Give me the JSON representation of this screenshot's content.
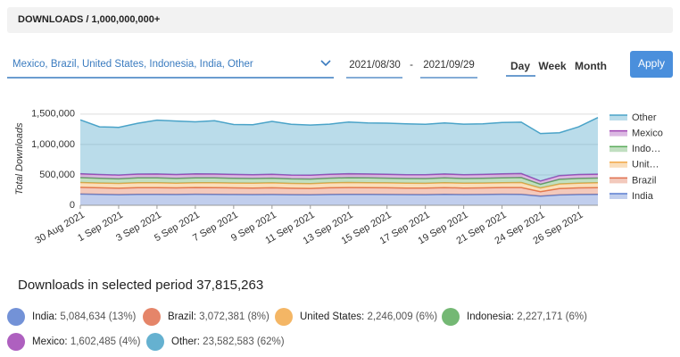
{
  "header": {
    "title": "DOWNLOADS / 1,000,000,000+"
  },
  "filters": {
    "countries": "Mexico,  Brazil,  United States,  Indonesia,  India,  Other",
    "start_date": "2021/08/30",
    "separator": "-",
    "end_date": "2021/09/29",
    "granularity": [
      "Day",
      "Week",
      "Month"
    ],
    "apply": "Apply"
  },
  "chart_data": {
    "type": "stacked_area",
    "ylabel": "Total Downloads",
    "categories": [
      "30 Aug 2021",
      null,
      "1 Sep 2021",
      null,
      "3 Sep 2021",
      null,
      "5 Sep 2021",
      null,
      "7 Sep 2021",
      null,
      "9 Sep 2021",
      null,
      "11 Sep 2021",
      null,
      "13 Sep 2021",
      null,
      "15 Sep 2021",
      null,
      "17 Sep 2021",
      null,
      "19 Sep 2021",
      null,
      "21 Sep 2021",
      null,
      "24 Sep 2021",
      null,
      "26 Sep 2021",
      null
    ],
    "ylim": [
      0,
      1600000
    ],
    "yticks": [
      {
        "value": 0,
        "label": "0"
      },
      {
        "value": 500000,
        "label": "500,000"
      },
      {
        "value": 1000000,
        "label": "1,000,000"
      },
      {
        "value": 1500000,
        "label": "1,500,000"
      }
    ],
    "grid": true,
    "legend": "right",
    "series": [
      {
        "name": "India",
        "color": "#5b7fd0",
        "values": [
          185000,
          180000,
          175000,
          180000,
          180000,
          178000,
          182000,
          180000,
          178000,
          176000,
          178000,
          175000,
          172000,
          178000,
          180000,
          180000,
          178000,
          176000,
          175000,
          180000,
          176000,
          178000,
          182000,
          180000,
          150000,
          170000,
          178000,
          180000
        ]
      },
      {
        "name": "Brazil",
        "color": "#e0704f",
        "values": [
          110000,
          108000,
          106000,
          110000,
          110000,
          108000,
          110000,
          110000,
          108000,
          108000,
          110000,
          106000,
          106000,
          110000,
          112000,
          110000,
          110000,
          108000,
          108000,
          110000,
          108000,
          108000,
          110000,
          112000,
          75000,
          105000,
          108000,
          110000
        ]
      },
      {
        "name": "Unit…",
        "color": "#f2a94a",
        "values": [
          80000,
          78000,
          78000,
          80000,
          80000,
          78000,
          80000,
          80000,
          80000,
          78000,
          80000,
          78000,
          78000,
          80000,
          82000,
          80000,
          80000,
          78000,
          78000,
          80000,
          78000,
          80000,
          80000,
          82000,
          60000,
          76000,
          78000,
          80000
        ]
      },
      {
        "name": "Indo…",
        "color": "#5cac5c",
        "values": [
          80000,
          78000,
          76000,
          80000,
          80000,
          78000,
          80000,
          80000,
          78000,
          78000,
          78000,
          76000,
          76000,
          78000,
          80000,
          80000,
          78000,
          78000,
          78000,
          80000,
          78000,
          78000,
          80000,
          82000,
          60000,
          76000,
          78000,
          78000
        ]
      },
      {
        "name": "Mexico",
        "color": "#a044b4",
        "values": [
          65000,
          62000,
          62000,
          64000,
          65000,
          64000,
          65000,
          65000,
          64000,
          64000,
          64000,
          62000,
          62000,
          64000,
          66000,
          65000,
          64000,
          64000,
          64000,
          65000,
          64000,
          64000,
          65000,
          66000,
          55000,
          62000,
          64000,
          65000
        ]
      },
      {
        "name": "Other",
        "color": "#4aa3c8",
        "values": [
          885000,
          785000,
          785000,
          835000,
          885000,
          880000,
          855000,
          875000,
          820000,
          820000,
          870000,
          835000,
          825000,
          825000,
          850000,
          840000,
          840000,
          835000,
          830000,
          840000,
          830000,
          830000,
          845000,
          845000,
          780000,
          705000,
          785000,
          930000
        ]
      }
    ]
  },
  "summary": {
    "title": "Downloads in selected period 37,815,263",
    "items": [
      {
        "label": "India:",
        "detail": "5,084,634 (13%)"
      },
      {
        "label": "Brazil:",
        "detail": "3,072,381 (8%)"
      },
      {
        "label": "United States:",
        "detail": "2,246,009 (6%)"
      },
      {
        "label": "Indonesia:",
        "detail": "2,227,171 (6%)"
      },
      {
        "label": "Mexico:",
        "detail": "1,602,485 (4%)"
      },
      {
        "label": "Other:",
        "detail": "23,582,583 (62%)"
      }
    ]
  }
}
